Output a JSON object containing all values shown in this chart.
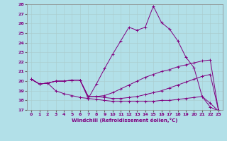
{
  "xlabel": "Windchill (Refroidissement éolien,°C)",
  "bg_color": "#b2e0e8",
  "line_color": "#800080",
  "grid_color": "#c8dde0",
  "xmin": 0,
  "xmax": 23,
  "ymin": 17,
  "ymax": 28,
  "x_ticks": [
    0,
    1,
    2,
    3,
    4,
    5,
    6,
    7,
    8,
    9,
    10,
    11,
    12,
    13,
    14,
    15,
    16,
    17,
    18,
    19,
    20,
    21,
    22,
    23
  ],
  "y_ticks": [
    17,
    18,
    19,
    20,
    21,
    22,
    23,
    24,
    25,
    26,
    27,
    28
  ],
  "line1_x": [
    0,
    1,
    2,
    3,
    4,
    5,
    6,
    7,
    8,
    9,
    10,
    11,
    12,
    13,
    14,
    15,
    16,
    17,
    18,
    19,
    20,
    21,
    22,
    23
  ],
  "line1_y": [
    20.2,
    19.7,
    19.8,
    20.0,
    20.0,
    20.1,
    20.1,
    18.2,
    19.7,
    21.3,
    22.8,
    24.2,
    25.6,
    25.3,
    25.6,
    27.8,
    26.1,
    25.4,
    24.2,
    22.5,
    21.4,
    18.4,
    17.7,
    16.9
  ],
  "line2_x": [
    0,
    1,
    2,
    3,
    4,
    5,
    6,
    7,
    8,
    9,
    10,
    11,
    12,
    13,
    14,
    15,
    16,
    17,
    18,
    19,
    20,
    21,
    22,
    23
  ],
  "line2_y": [
    20.2,
    19.7,
    19.8,
    20.0,
    20.0,
    20.1,
    20.1,
    18.4,
    18.4,
    18.5,
    18.8,
    19.2,
    19.6,
    20.0,
    20.4,
    20.7,
    21.0,
    21.2,
    21.5,
    21.7,
    21.9,
    22.1,
    22.2,
    17.0
  ],
  "line3_x": [
    0,
    1,
    2,
    3,
    4,
    5,
    6,
    7,
    8,
    9,
    10,
    11,
    12,
    13,
    14,
    15,
    16,
    17,
    18,
    19,
    20,
    21,
    22,
    23
  ],
  "line3_y": [
    20.2,
    19.7,
    19.8,
    20.0,
    20.0,
    20.1,
    20.1,
    18.4,
    18.4,
    18.3,
    18.2,
    18.2,
    18.3,
    18.4,
    18.6,
    18.8,
    19.0,
    19.3,
    19.6,
    19.9,
    20.2,
    20.5,
    20.7,
    17.0
  ],
  "line4_x": [
    0,
    1,
    2,
    3,
    4,
    5,
    6,
    7,
    8,
    9,
    10,
    11,
    12,
    13,
    14,
    15,
    16,
    17,
    18,
    19,
    20,
    21,
    22,
    23
  ],
  "line4_y": [
    20.2,
    19.7,
    19.8,
    19.0,
    18.7,
    18.5,
    18.3,
    18.2,
    18.1,
    18.0,
    17.9,
    17.9,
    17.9,
    17.9,
    17.9,
    17.9,
    18.0,
    18.0,
    18.1,
    18.2,
    18.3,
    18.4,
    17.3,
    16.9
  ]
}
